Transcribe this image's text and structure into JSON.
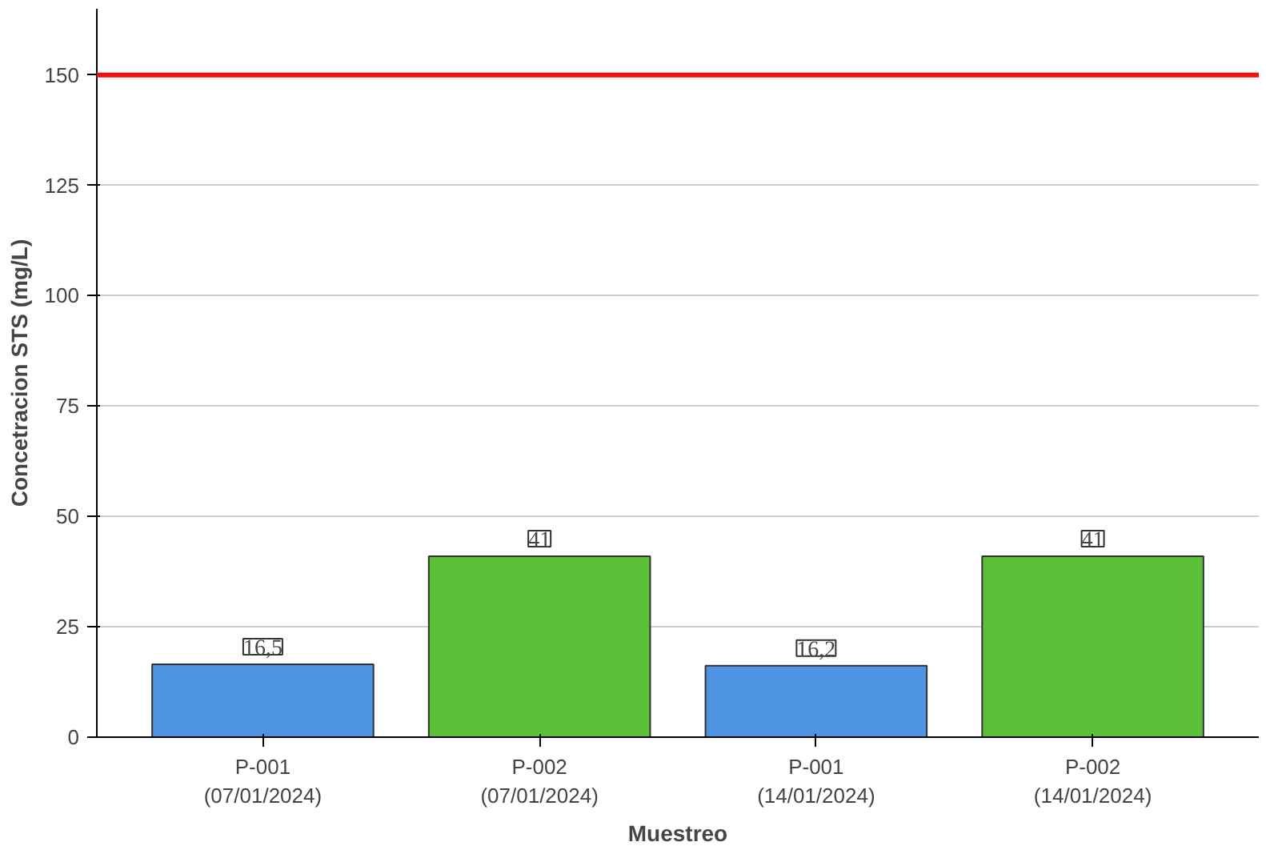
{
  "chart_data": {
    "type": "bar",
    "xlabel": "Muestreo",
    "ylabel": "Concetracion STS (mg/L)",
    "categories": [
      "P-001\n(07/01/2024)",
      "P-002\n(07/01/2024)",
      "P-001\n(14/01/2024)",
      "P-002\n(14/01/2024)"
    ],
    "values": [
      16.5,
      41,
      16.2,
      41
    ],
    "colors": [
      "#4f93e3",
      "#5cbf3a",
      "#4f93e3",
      "#5cbf3a"
    ],
    "value_labels": [
      "16,5",
      "41",
      "16,2",
      "41"
    ],
    "ylim": [
      0,
      165
    ],
    "yticks": [
      0,
      25,
      50,
      75,
      100,
      125,
      150
    ],
    "ref_lines": [
      {
        "axis": "y",
        "value": 150,
        "color": "#ee1111"
      }
    ],
    "grid": "y"
  }
}
